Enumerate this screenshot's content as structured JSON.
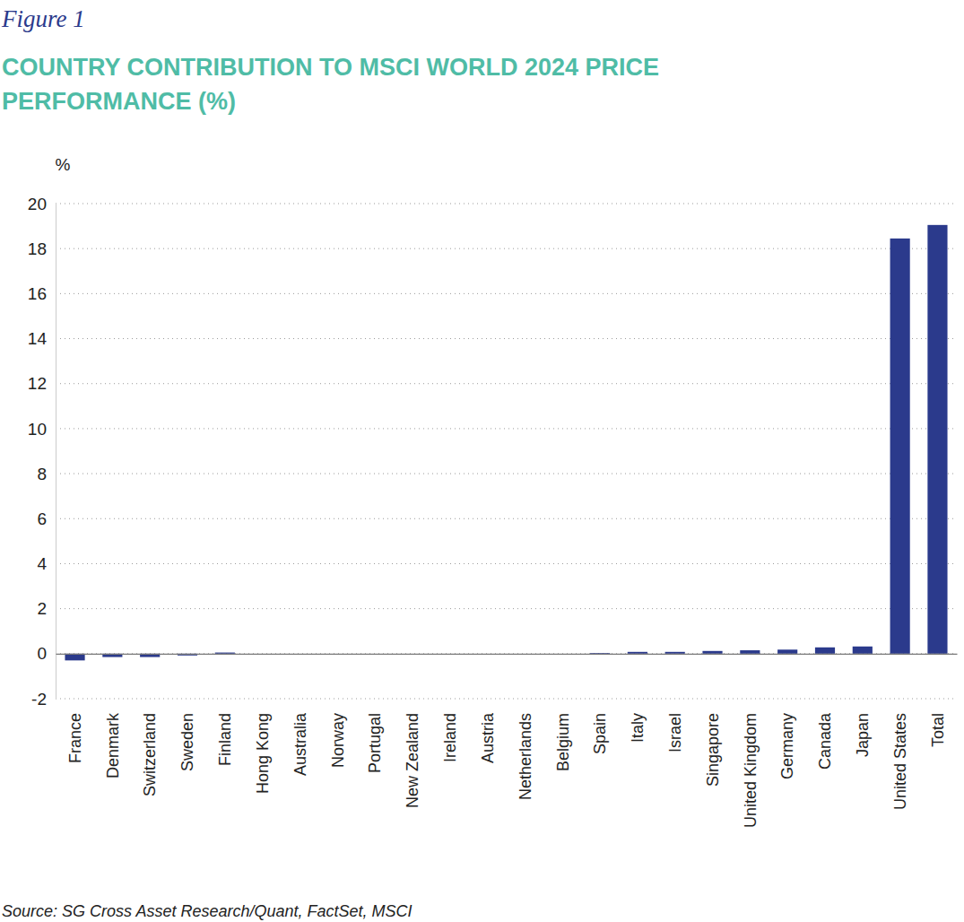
{
  "chart_data": {
    "type": "bar",
    "figure_label": "Figure 1",
    "title": "COUNTRY CONTRIBUTION TO MSCI WORLD 2024 PRICE PERFORMANCE (%)",
    "y_label": "%",
    "source": "Source: SG Cross Asset Research/Quant, FactSet, MSCI",
    "categories": [
      "France",
      "Denmark",
      "Switzerland",
      "Sweden",
      "Finland",
      "Hong Kong",
      "Australia",
      "Norway",
      "Portugal",
      "New Zealand",
      "Ireland",
      "Austria",
      "Netherlands",
      "Belgium",
      "Spain",
      "Italy",
      "Israel",
      "Singapore",
      "United Kingdom",
      "Germany",
      "Canada",
      "Japan",
      "United States",
      "Total"
    ],
    "values": [
      -0.3,
      -0.15,
      -0.15,
      -0.08,
      0.05,
      0,
      0,
      0,
      0,
      0,
      0,
      0,
      0,
      0,
      0.03,
      0.08,
      0.08,
      0.12,
      0.15,
      0.18,
      0.28,
      0.32,
      18.45,
      19.05
    ],
    "color": "#2b3a8c",
    "ylim": [
      -2,
      20
    ],
    "yticks": [
      -2,
      0,
      2,
      4,
      6,
      8,
      10,
      12,
      14,
      16,
      18,
      20
    ],
    "grid": true
  }
}
